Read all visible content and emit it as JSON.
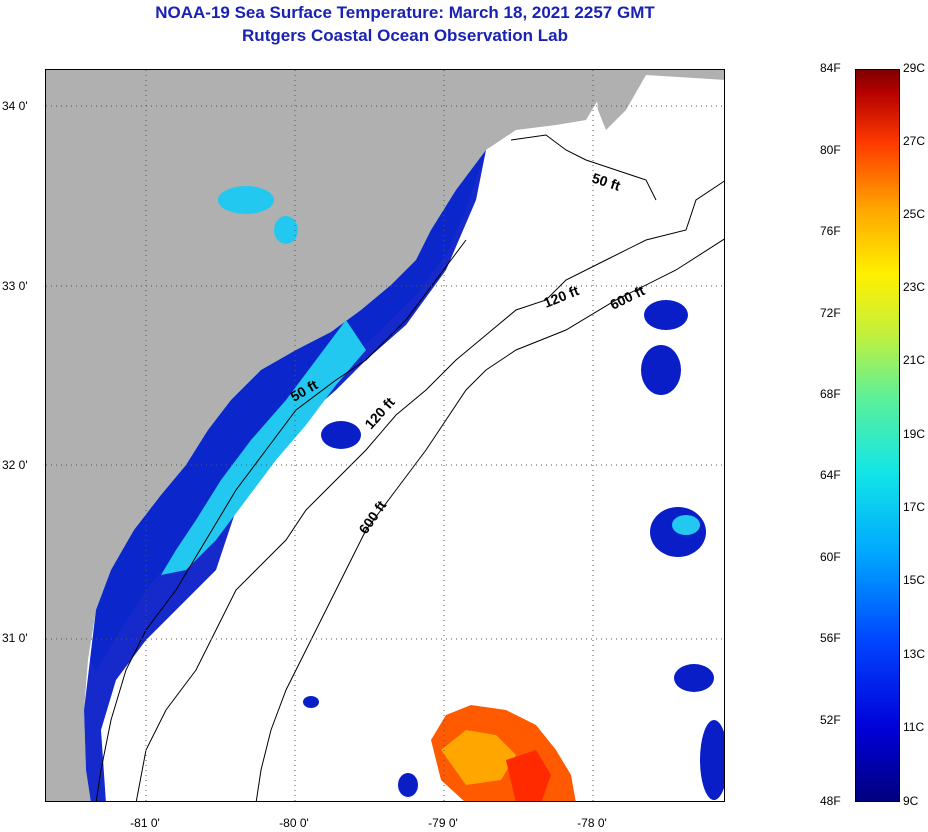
{
  "header": {
    "title_line1": "NOAA-19 Sea Surface Temperature:  March 18, 2021 2257 GMT",
    "title_line2": "Rutgers Coastal Ocean Observation Lab"
  },
  "map": {
    "lat_labels": [
      "34 0'",
      "33 0'",
      "32 0'",
      "31 0'"
    ],
    "lon_labels": [
      "-81 0'",
      "-80 0'",
      "-79 0'",
      "-78 0'"
    ],
    "contour_labels": [
      "50 ft",
      "120 ft",
      "600 ft",
      "50 ft",
      "120 ft",
      "600 ft"
    ],
    "colors": {
      "land": "#b0b0b0",
      "ocean_no_data": "#ffffff",
      "cold_water": "#0a1ec8",
      "cool_water": "#22c8f0",
      "warm_water": "#ff5a00"
    }
  },
  "colorbar": {
    "fahrenheit_labels": [
      "84F",
      "80F",
      "76F",
      "72F",
      "68F",
      "64F",
      "60F",
      "56F",
      "52F",
      "48F"
    ],
    "celsius_labels": [
      "29C",
      "27C",
      "25C",
      "23C",
      "21C",
      "19C",
      "17C",
      "15C",
      "13C",
      "11C",
      "9C"
    ],
    "colors": [
      "#00007f",
      "#0000d8",
      "#0046ff",
      "#00a8ff",
      "#12e6e6",
      "#5cf09a",
      "#c4f03a",
      "#fff000",
      "#ffa600",
      "#ff3a00",
      "#b40000",
      "#7f0000"
    ]
  }
}
